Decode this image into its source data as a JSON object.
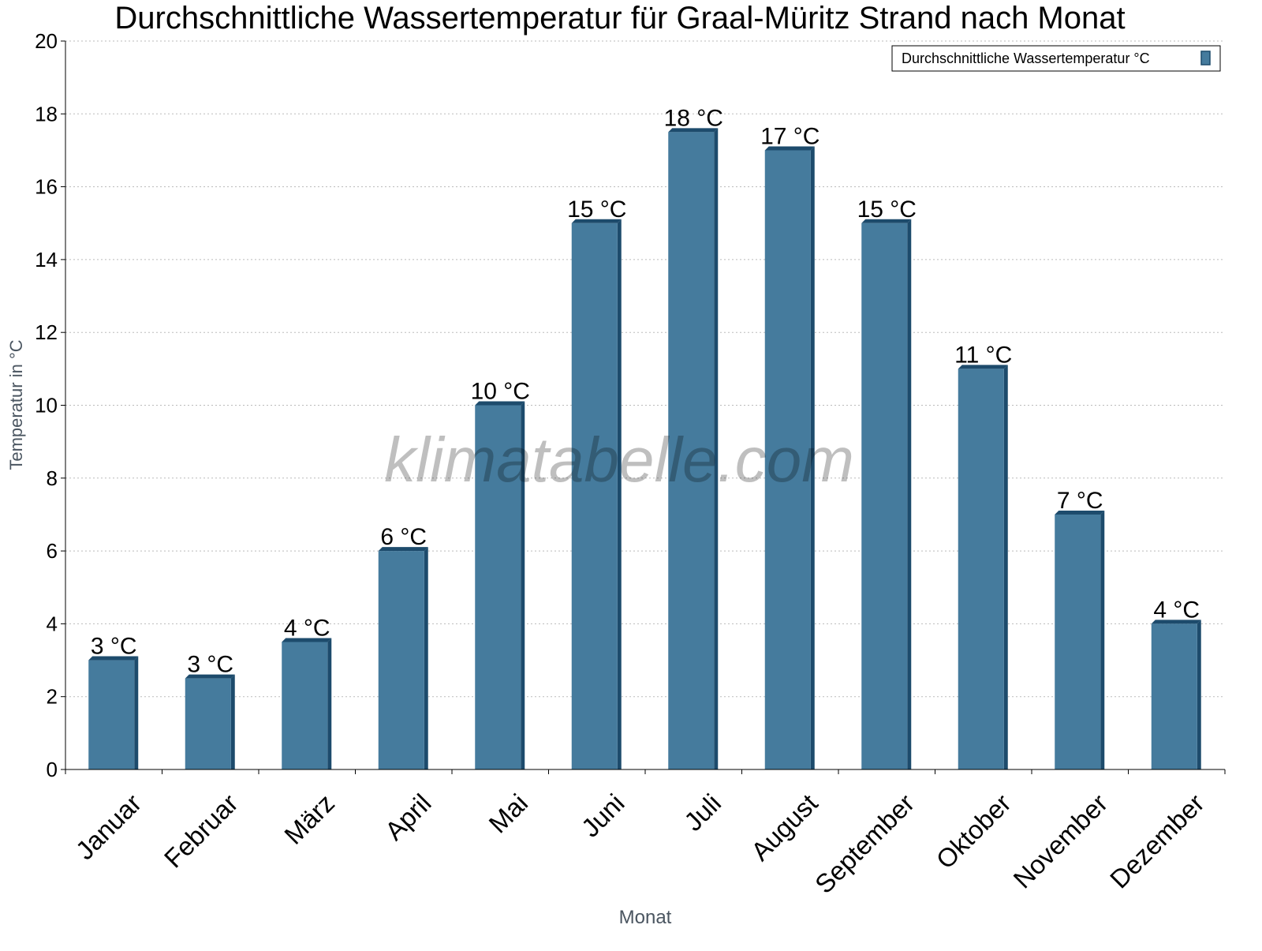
{
  "chart_data": {
    "type": "bar",
    "title": "Durchschnittliche Wassertemperatur für Graal-Müritz Strand nach Monat",
    "xlabel": "Monat",
    "ylabel": "Temperatur in °C",
    "ylim": [
      0,
      20
    ],
    "yticks": [
      0,
      2,
      4,
      6,
      8,
      10,
      12,
      14,
      16,
      18,
      20
    ],
    "grid": true,
    "legend_position": "top-right",
    "categories": [
      "Januar",
      "Februar",
      "März",
      "April",
      "Mai",
      "Juni",
      "Juli",
      "August",
      "September",
      "Oktober",
      "November",
      "Dezember"
    ],
    "series": [
      {
        "name": "Durchschnittliche Wassertemperatur °C",
        "values": [
          3,
          2.5,
          3.5,
          6,
          10,
          15,
          17.5,
          17,
          15,
          11,
          7,
          4
        ],
        "labels": [
          "3 °C",
          "3 °C",
          "4 °C",
          "6 °C",
          "10 °C",
          "15 °C",
          "18 °C",
          "17 °C",
          "15 °C",
          "11 °C",
          "7 °C",
          "4 °C"
        ],
        "color": "#457b9d",
        "side_color": "#1d4b6c"
      }
    ],
    "watermark": "klimatabelle.com"
  }
}
